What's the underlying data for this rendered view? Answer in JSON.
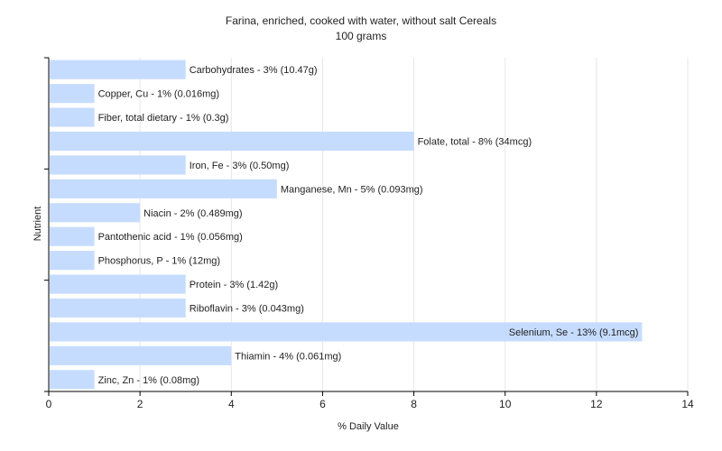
{
  "chart_data": {
    "type": "bar",
    "orientation": "horizontal",
    "title": "Farina, enriched, cooked with water, without salt Cereals",
    "subtitle": "100 grams",
    "xlabel": "% Daily Value",
    "ylabel": "Nutrient",
    "xlim": [
      0,
      14
    ],
    "xticks": [
      "0",
      "2",
      "4",
      "6",
      "8",
      "10",
      "12",
      "14"
    ],
    "grid": true,
    "bar_color": "#c6dcff",
    "categories": [
      "Carbohydrates",
      "Copper, Cu",
      "Fiber, total dietary",
      "Folate, total",
      "Iron, Fe",
      "Manganese, Mn",
      "Niacin",
      "Pantothenic acid",
      "Phosphorus, P",
      "Protein",
      "Riboflavin",
      "Selenium, Se",
      "Thiamin",
      "Zinc, Zn"
    ],
    "values": [
      3,
      1,
      1,
      8,
      3,
      5,
      2,
      1,
      1,
      3,
      3,
      13,
      4,
      1
    ],
    "labels": [
      "Carbohydrates - 3% (10.47g)",
      "Copper, Cu - 1% (0.016mg)",
      "Fiber, total dietary - 1% (0.3g)",
      "Folate, total - 8% (34mcg)",
      "Iron, Fe - 3% (0.50mg)",
      "Manganese, Mn - 5% (0.093mg)",
      "Niacin - 2% (0.489mg)",
      "Pantothenic acid - 1% (0.056mg)",
      "Phosphorus, P - 1% (12mg)",
      "Protein - 3% (1.42g)",
      "Riboflavin - 3% (0.043mg)",
      "Selenium, Se - 13% (9.1mcg)",
      "Thiamin - 4% (0.061mg)",
      "Zinc, Zn - 1% (0.08mg)"
    ]
  }
}
